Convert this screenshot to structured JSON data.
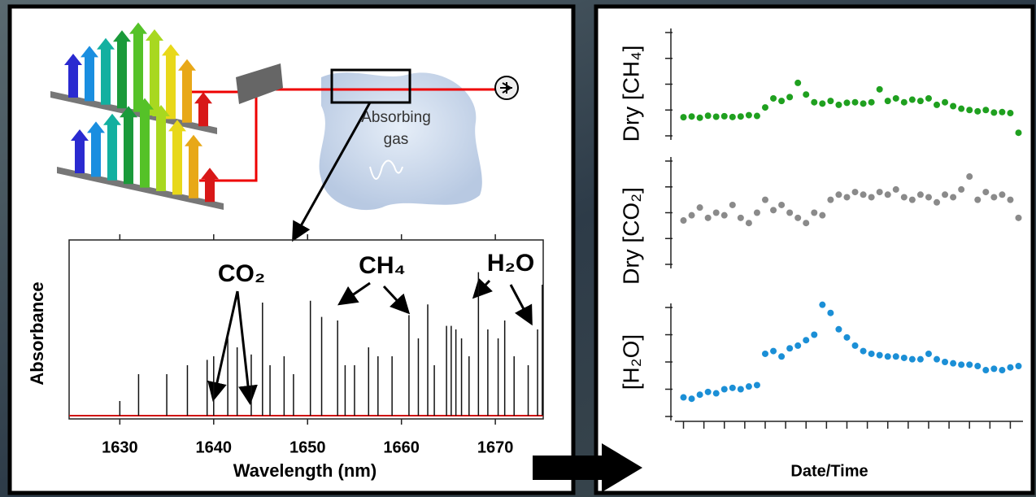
{
  "diagram": {
    "gas_label": [
      "Absorbing",
      "gas"
    ]
  },
  "chart_data": [
    {
      "type": "stick",
      "x_label": "Wavelength (nm)",
      "y_label": "Absorbance",
      "annotations": [
        "CO₂",
        "CH₄",
        "H₂O"
      ],
      "x": [
        1630,
        1632,
        1635,
        1637.2,
        1639.3,
        1640,
        1641.5,
        1642.5,
        1644,
        1645.2,
        1646,
        1647.5,
        1648.5,
        1650.3,
        1651.5,
        1653.2,
        1654,
        1655,
        1656.5,
        1657.5,
        1659,
        1660.8,
        1661.8,
        1662.8,
        1663.5,
        1664.8,
        1665.3,
        1665.8,
        1666.4,
        1667.2,
        1668.2,
        1669.2,
        1670.3,
        1671,
        1672,
        1673.5,
        1674.5,
        1675
      ],
      "values": [
        0.1,
        0.25,
        0.25,
        0.3,
        0.33,
        0.35,
        0.45,
        0.4,
        0.36,
        0.65,
        0.3,
        0.35,
        0.25,
        0.66,
        0.57,
        0.55,
        0.3,
        0.3,
        0.4,
        0.35,
        0.35,
        0.58,
        0.45,
        0.64,
        0.3,
        0.52,
        0.52,
        0.5,
        0.45,
        0.35,
        0.82,
        0.5,
        0.45,
        0.55,
        0.35,
        0.3,
        0.5,
        0.75
      ],
      "color": "#111111",
      "xlim": [
        1624.6,
        1675.1
      ],
      "xticks": [
        1630,
        1640,
        1650,
        1660,
        1670
      ],
      "ylim": [
        0,
        1
      ]
    },
    {
      "type": "scatter",
      "x_label": "Date/Time",
      "x": [
        0,
        0.4,
        0.8,
        1.2,
        1.6,
        2,
        2.4,
        2.8,
        3.2,
        3.6,
        4,
        4.4,
        4.8,
        5.2,
        5.6,
        6,
        6.4,
        6.8,
        7.2,
        7.6,
        8,
        8.4,
        8.8,
        9.2,
        9.6,
        10,
        10.4,
        10.8,
        11.2,
        11.6,
        12,
        12.4,
        12.8,
        13.2,
        13.6,
        14,
        14.4,
        14.8,
        15.2,
        15.6,
        16,
        16.4
      ],
      "xlim": [
        -0.1,
        16.5
      ],
      "xticks": [
        0,
        1,
        2,
        3,
        4,
        5,
        6,
        7,
        8,
        9,
        10,
        11,
        12,
        13,
        14,
        15,
        16
      ],
      "ylim": [
        0,
        4
      ],
      "yticks": [
        0,
        1,
        2,
        3,
        4
      ],
      "series": [
        {
          "name": "Dry [CH₄]",
          "color": "#1fa01f",
          "values": [
            0.72,
            0.75,
            0.7,
            0.78,
            0.74,
            0.76,
            0.73,
            0.75,
            0.8,
            0.77,
            1.1,
            1.45,
            1.35,
            1.5,
            2.05,
            1.6,
            1.3,
            1.25,
            1.35,
            1.2,
            1.28,
            1.3,
            1.25,
            1.3,
            1.8,
            1.35,
            1.45,
            1.3,
            1.4,
            1.35,
            1.45,
            1.2,
            1.3,
            1.15,
            1.05,
            1.0,
            0.95,
            1.0,
            0.9,
            0.92,
            0.88,
            0.12
          ]
        },
        {
          "name": "Dry [CO₂]",
          "color": "#8a8a8a",
          "values": [
            1.7,
            1.9,
            2.2,
            1.8,
            2.0,
            1.9,
            2.3,
            1.8,
            1.6,
            2.0,
            2.5,
            2.1,
            2.3,
            2.0,
            1.8,
            1.6,
            2.0,
            1.9,
            2.5,
            2.7,
            2.6,
            2.8,
            2.7,
            2.6,
            2.8,
            2.7,
            2.9,
            2.6,
            2.5,
            2.7,
            2.6,
            2.4,
            2.7,
            2.6,
            2.9,
            3.4,
            2.5,
            2.8,
            2.6,
            2.7,
            2.5,
            1.8
          ]
        },
        {
          "name": "[H₂O]",
          "color": "#1b8fd6",
          "values": [
            0.7,
            0.65,
            0.8,
            0.9,
            0.85,
            1.0,
            1.05,
            1.0,
            1.1,
            1.15,
            2.3,
            2.4,
            2.2,
            2.5,
            2.6,
            2.8,
            3.0,
            4.1,
            3.8,
            3.2,
            2.9,
            2.6,
            2.4,
            2.3,
            2.25,
            2.2,
            2.2,
            2.15,
            2.1,
            2.1,
            2.3,
            2.1,
            2.0,
            1.95,
            1.9,
            1.9,
            1.85,
            1.7,
            1.75,
            1.7,
            1.8,
            1.85
          ]
        }
      ]
    }
  ]
}
